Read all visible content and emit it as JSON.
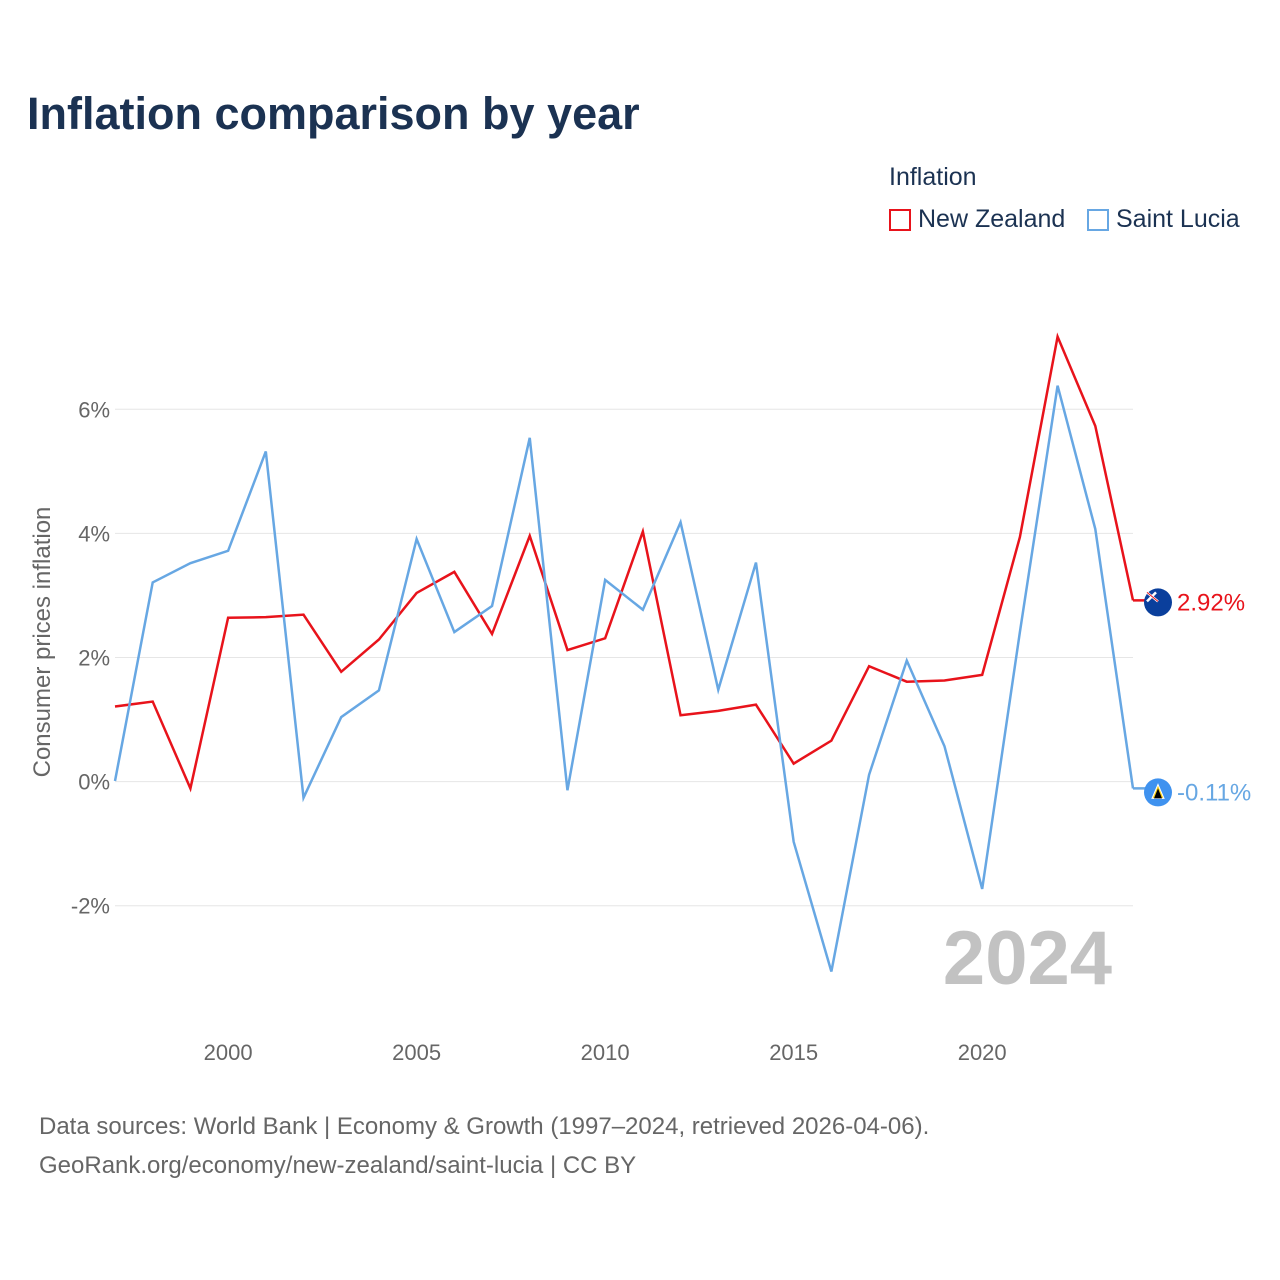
{
  "title": "Inflation comparison by year",
  "legend": {
    "title": "Inflation",
    "items": [
      {
        "label": "New Zealand",
        "color": "#e8131b"
      },
      {
        "label": "Saint Lucia",
        "color": "#67a7e3"
      }
    ]
  },
  "year_watermark": "2024",
  "source": {
    "line1": "Data sources: World Bank | Economy & Growth (1997–2024, retrieved 2026-04-06).",
    "line2": "GeoRank.org/economy/new-zealand/saint-lucia | CC BY"
  },
  "chart_data": {
    "type": "line",
    "title": "Inflation comparison by year",
    "xlabel": "",
    "ylabel": "Consumer prices inflation",
    "x": [
      1997,
      1998,
      1999,
      2000,
      2001,
      2002,
      2003,
      2004,
      2005,
      2006,
      2007,
      2008,
      2009,
      2010,
      2011,
      2012,
      2013,
      2014,
      2015,
      2016,
      2017,
      2018,
      2019,
      2020,
      2021,
      2022,
      2023,
      2024
    ],
    "xlim": [
      1997,
      2024
    ],
    "ylim": [
      -3.6,
      7.6
    ],
    "x_ticks": [
      2000,
      2005,
      2010,
      2015,
      2020
    ],
    "x_tick_labels": [
      "2000",
      "2005",
      "2010",
      "2015",
      "2020"
    ],
    "y_ticks": [
      -2,
      0,
      2,
      4,
      6
    ],
    "y_tick_labels": [
      "-2%",
      "0%",
      "2%",
      "4%",
      "6%"
    ],
    "grid": true,
    "legend_position": "top-right",
    "series": [
      {
        "name": "New Zealand",
        "color": "#e8131b",
        "values": [
          1.21,
          1.29,
          -0.11,
          2.64,
          2.65,
          2.69,
          1.77,
          2.29,
          3.04,
          3.38,
          2.38,
          3.96,
          2.12,
          2.31,
          4.03,
          1.07,
          1.14,
          1.24,
          0.29,
          0.66,
          1.86,
          1.61,
          1.63,
          1.72,
          3.94,
          7.17,
          5.73,
          2.92
        ],
        "end_label": "2.92%"
      },
      {
        "name": "Saint Lucia",
        "color": "#67a7e3",
        "values": [
          0.01,
          3.21,
          3.52,
          3.72,
          5.32,
          -0.26,
          1.04,
          1.47,
          3.91,
          2.41,
          2.83,
          5.54,
          -0.14,
          3.25,
          2.77,
          4.18,
          1.48,
          3.53,
          -0.97,
          -3.06,
          0.11,
          1.95,
          0.57,
          -1.73,
          2.41,
          6.38,
          4.07,
          -0.11
        ],
        "end_label": "-0.11%"
      }
    ]
  }
}
